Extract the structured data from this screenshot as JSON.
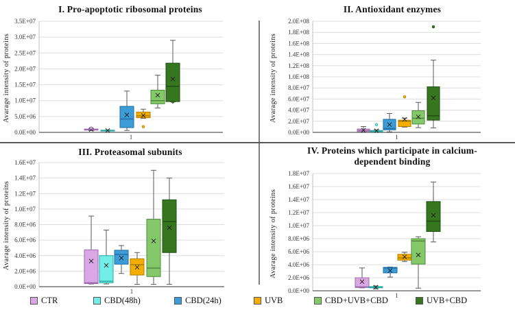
{
  "figure": {
    "ylabel": "Avarage intensity of proteins",
    "xtick_label": "1"
  },
  "legend": {
    "items": [
      {
        "label": "CTR",
        "fill": "#D9A7E3",
        "stroke": "#9C6BAE"
      },
      {
        "label": "CBD(48h)",
        "fill": "#72EDE8",
        "stroke": "#2AA9A4"
      },
      {
        "label": "CBD(24h)",
        "fill": "#3D9BD5",
        "stroke": "#1F6FA8"
      },
      {
        "label": "UVB",
        "fill": "#F5AE00",
        "stroke": "#B07D00"
      },
      {
        "label": "CBD+UVB+CBD",
        "fill": "#84C869",
        "stroke": "#4E8A3C"
      },
      {
        "label": "UVB+CBD",
        "fill": "#36761F",
        "stroke": "#1F4D14"
      }
    ]
  },
  "chart_data": [
    {
      "type": "box",
      "title": "I. Pro-apoptotic ribosomal proteins",
      "ylabel": "Avarage intensity of proteins",
      "xlabel": "1",
      "ylim": [
        0,
        35000000.0
      ],
      "grid": true,
      "yticks": [
        "0.0E+00",
        "5.0E+06",
        "1.0E+07",
        "1.5E+07",
        "2.0E+07",
        "2.5E+07",
        "3.0E+07",
        "3.5E+07"
      ],
      "categories": [
        "CTR",
        "CBD(48h)",
        "CBD(24h)",
        "UVB",
        "CBD+UVB+CBD",
        "UVB+CBD"
      ],
      "series": [
        {
          "name": "CTR",
          "low": 550000.0,
          "q1": 700000.0,
          "median": 850000.0,
          "q3": 1050000.0,
          "high": 1200000.0,
          "mean": 900000.0,
          "outliers": [
            1350000.0
          ]
        },
        {
          "name": "CBD(48h)",
          "low": 400000.0,
          "q1": 500000.0,
          "median": 600000.0,
          "q3": 700000.0,
          "high": 800000.0,
          "mean": 600000.0,
          "outliers": []
        },
        {
          "name": "CBD(24h)",
          "low": 600000.0,
          "q1": 1500000.0,
          "median": 4200000.0,
          "q3": 8200000.0,
          "high": 13000000.0,
          "mean": 5500000.0,
          "outliers": []
        },
        {
          "name": "UVB",
          "low": 4400000.0,
          "q1": 4600000.0,
          "median": 5200000.0,
          "q3": 6400000.0,
          "high": 7300000.0,
          "mean": 5300000.0,
          "outliers": [
            1800000.0
          ]
        },
        {
          "name": "CBD+UVB+CBD",
          "low": 7700000.0,
          "q1": 9000000.0,
          "median": 10000000.0,
          "q3": 13300000.0,
          "high": 18000000.0,
          "mean": 11700000.0,
          "outliers": []
        },
        {
          "name": "UVB+CBD",
          "low": 9600000.0,
          "q1": 9700000.0,
          "median": 14500000.0,
          "q3": 21800000.0,
          "high": 29000000.0,
          "mean": 16800000.0,
          "outliers": [
            9600000.0
          ]
        }
      ]
    },
    {
      "type": "box",
      "title": "II. Antioxidant enzymes",
      "ylabel": "Avarage intensity of proteins",
      "xlabel": "1",
      "ylim": [
        0,
        200000000.0
      ],
      "grid": true,
      "yticks": [
        "0.0E+00",
        "2.0E+07",
        "4.0E+07",
        "6.0E+07",
        "8.0E+07",
        "1.0E+08",
        "1.2E+08",
        "1.4E+08",
        "1.6E+08",
        "1.8E+08",
        "2.0E+08"
      ],
      "categories": [
        "CTR",
        "CBD(48h)",
        "CBD(24h)",
        "UVB",
        "CBD+UVB+CBD",
        "UVB+CBD"
      ],
      "series": [
        {
          "name": "CTR",
          "low": 1000000.0,
          "q1": 1500000.0,
          "median": 3500000.0,
          "q3": 6000000.0,
          "high": 10500000.0,
          "mean": 4000000.0,
          "outliers": []
        },
        {
          "name": "CBD(48h)",
          "low": 500000.0,
          "q1": 1000000.0,
          "median": 2000000.0,
          "q3": 3500000.0,
          "high": 4500000.0,
          "mean": 3000000.0,
          "outliers": [
            14000000.0
          ]
        },
        {
          "name": "CBD(24h)",
          "low": 1000000.0,
          "q1": 4500000.0,
          "median": 7000000.0,
          "q3": 23500000.0,
          "high": 34000000.0,
          "mean": 14000000.0,
          "outliers": []
        },
        {
          "name": "UVB",
          "low": 9500000.0,
          "q1": 10500000.0,
          "median": 20000000.0,
          "q3": 22000000.0,
          "high": 25500000.0,
          "mean": 23500000.0,
          "outliers": [
            64000000.0
          ]
        },
        {
          "name": "CBD+UVB+CBD",
          "low": 8500000.0,
          "q1": 15000000.0,
          "median": 25500000.0,
          "q3": 39000000.0,
          "high": 54000000.0,
          "mean": 28000000.0,
          "outliers": []
        },
        {
          "name": "UVB+CBD",
          "low": 8000000.0,
          "q1": 22000000.0,
          "median": 30000000.0,
          "q3": 82000000.0,
          "high": 130000000.0,
          "mean": 62000000.0,
          "outliers": [
            190000000.0
          ]
        }
      ]
    },
    {
      "type": "box",
      "title": "III. Proteasomal subunits",
      "ylabel": "Avarage intensity of proteins",
      "xlabel": "1",
      "ylim": [
        0,
        16000000.0
      ],
      "grid": true,
      "yticks": [
        "0.0E+00",
        "2.0E+06",
        "4.0E+06",
        "6.0E+06",
        "8.0E+06",
        "1.0E+07",
        "1.2E+07",
        "1.4E+07",
        "1.6E+07"
      ],
      "categories": [
        "CTR",
        "CBD(48h)",
        "CBD(24h)",
        "UVB",
        "CBD+UVB+CBD",
        "UVB+CBD"
      ],
      "series": [
        {
          "name": "CTR",
          "low": 350000.0,
          "q1": 400000.0,
          "median": 500000.0,
          "q3": 4750000.0,
          "high": 9100000.0,
          "mean": 3300000.0,
          "outliers": []
        },
        {
          "name": "CBD(48h)",
          "low": 350000.0,
          "q1": 500000.0,
          "median": 700000.0,
          "q3": 4000000.0,
          "high": 7300000.0,
          "mean": 2750000.0,
          "outliers": []
        },
        {
          "name": "CBD(24h)",
          "low": 1700000.0,
          "q1": 2900000.0,
          "median": 4150000.0,
          "q3": 4700000.0,
          "high": 5300000.0,
          "mean": 3700000.0,
          "outliers": []
        },
        {
          "name": "UVB",
          "low": 300000.0,
          "q1": 1500000.0,
          "median": 2850000.0,
          "q3": 3600000.0,
          "high": 4400000.0,
          "mean": 2500000.0,
          "outliers": []
        },
        {
          "name": "CBD+UVB+CBD",
          "low": 300000.0,
          "q1": 1300000.0,
          "median": 2400000.0,
          "q3": 8700000.0,
          "high": 15000000.0,
          "mean": 5900000.0,
          "outliers": []
        },
        {
          "name": "UVB+CBD",
          "low": 300000.0,
          "q1": 4400000.0,
          "median": 8400000.0,
          "q3": 11200000.0,
          "high": 14000000.0,
          "mean": 7600000.0,
          "outliers": []
        }
      ]
    },
    {
      "type": "box",
      "title": "IV. Proteins which participate in calcium-dependent binding",
      "ylabel": "Avarage intensity of proteins",
      "xlabel": "1",
      "ylim": [
        0,
        18000000.0
      ],
      "grid": true,
      "yticks": [
        "0.0E+00",
        "2.0E+06",
        "4.0E+06",
        "6.0E+06",
        "8.0E+06",
        "1.0E+07",
        "1.2E+07",
        "1.4E+07",
        "1.6E+07",
        "1.8E+07"
      ],
      "categories": [
        "CTR",
        "CBD(48h)",
        "CBD(24h)",
        "UVB",
        "CBD+UVB+CBD",
        "UVB+CBD"
      ],
      "series": [
        {
          "name": "CTR",
          "low": 450000.0,
          "q1": 500000.0,
          "median": 600000.0,
          "q3": 2000000.0,
          "high": 3500000.0,
          "mean": 1400000.0,
          "outliers": []
        },
        {
          "name": "CBD(48h)",
          "low": 300000.0,
          "q1": 450000.0,
          "median": 550000.0,
          "q3": 650000.0,
          "high": 750000.0,
          "mean": 550000.0,
          "outliers": []
        },
        {
          "name": "CBD(24h)",
          "low": 2100000.0,
          "q1": 2750000.0,
          "median": 3500000.0,
          "q3": 3600000.0,
          "high": 3650000.0,
          "mean": 3100000.0,
          "outliers": []
        },
        {
          "name": "UVB",
          "low": 4500000.0,
          "q1": 4700000.0,
          "median": 5050000.0,
          "q3": 5600000.0,
          "high": 5900000.0,
          "mean": 5200000.0,
          "outliers": []
        },
        {
          "name": "CBD+UVB+CBD",
          "low": 400000.0,
          "q1": 4100000.0,
          "median": 7650000.0,
          "q3": 8000000.0,
          "high": 8300000.0,
          "mean": 5500000.0,
          "outliers": []
        },
        {
          "name": "UVB+CBD",
          "low": 7500000.0,
          "q1": 9100000.0,
          "median": 10700000.0,
          "q3": 13700000.0,
          "high": 16700000.0,
          "mean": 11600000.0,
          "outliers": []
        }
      ]
    }
  ]
}
